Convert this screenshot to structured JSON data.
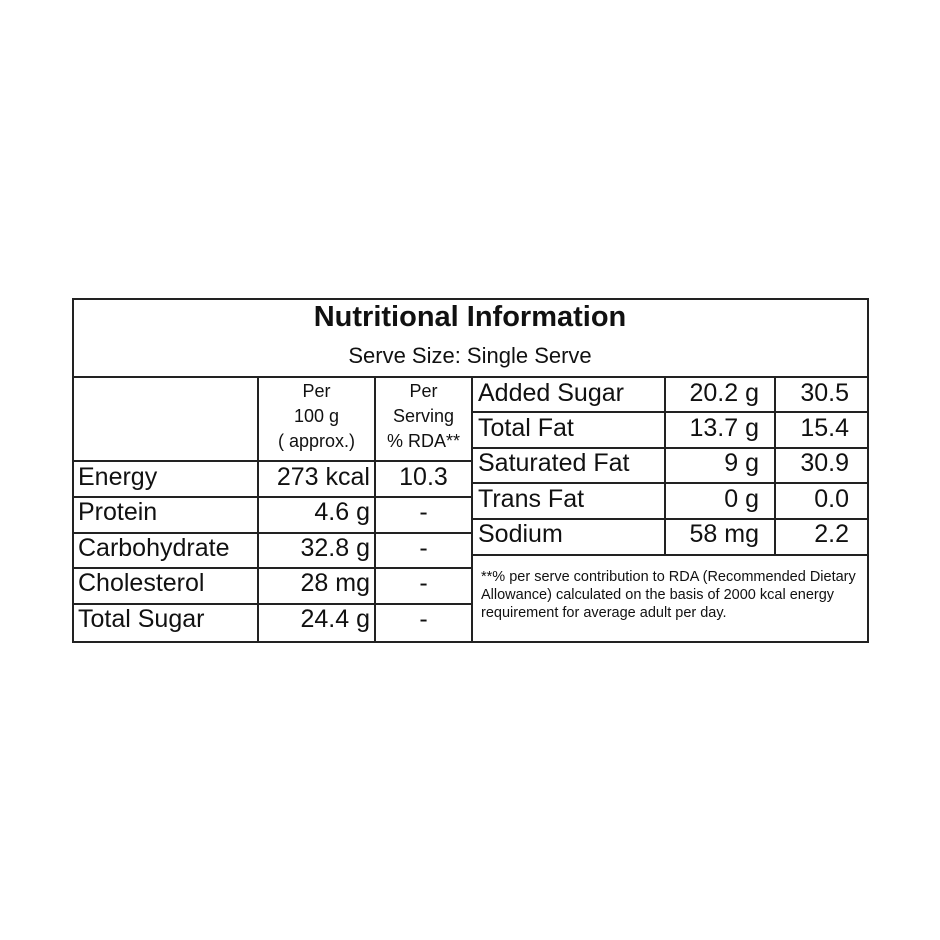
{
  "title": "Nutritional Information",
  "subtitle": "Serve Size: Single Serve",
  "headers": {
    "per100": [
      "Per",
      "100 g",
      "( approx.)"
    ],
    "perServing": [
      "Per",
      "Serving",
      "% RDA**"
    ]
  },
  "left_rows": [
    {
      "name": "Energy",
      "per100": "273 kcal",
      "rda": "10.3"
    },
    {
      "name": "Protein",
      "per100": "4.6 g",
      "rda": "-"
    },
    {
      "name": "Carbohydrate",
      "per100": "32.8 g",
      "rda": "-"
    },
    {
      "name": "Cholesterol",
      "per100": "28 mg",
      "rda": "-"
    },
    {
      "name": "Total Sugar",
      "per100": "24.4 g",
      "rda": "-"
    }
  ],
  "right_rows": [
    {
      "name": "Added Sugar",
      "per100": "20.2 g",
      "rda": "30.5"
    },
    {
      "name": "Total Fat",
      "per100": "13.7 g",
      "rda": "15.4"
    },
    {
      "name": "Saturated Fat",
      "per100": "9 g",
      "rda": "30.9"
    },
    {
      "name": "Trans Fat",
      "per100": "0 g",
      "rda": "0.0"
    },
    {
      "name": "Sodium",
      "per100": "58 mg",
      "rda": "2.2"
    }
  ],
  "footnote": "**% per serve contribution to RDA (Recommended Dietary Allowance) calculated on the basis of 2000 kcal energy requirement for average adult per day."
}
